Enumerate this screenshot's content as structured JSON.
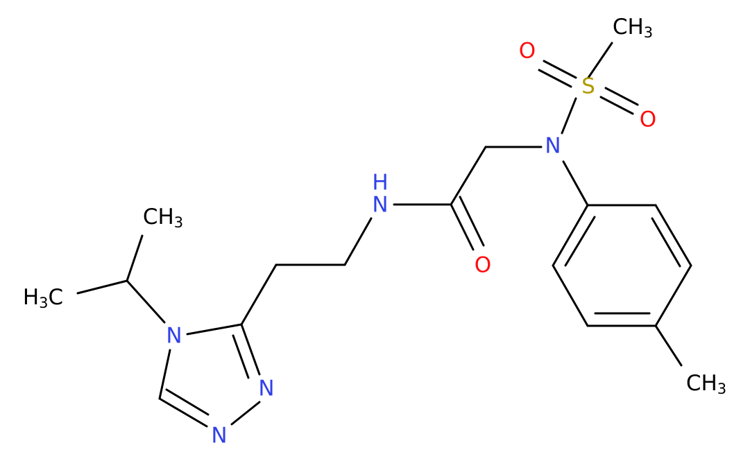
{
  "atoms": [
    {
      "parts": [
        "CH",
        "3"
      ]
    },
    {
      "parts": [
        "O"
      ]
    },
    {
      "parts": [
        "S"
      ]
    },
    {
      "parts": [
        "O"
      ]
    },
    {
      "parts": [
        "N"
      ]
    },
    {
      "parts": [
        "N"
      ]
    },
    {
      "parts": [
        "H"
      ]
    },
    {
      "parts": [
        "O"
      ]
    },
    {
      "parts": [
        "N"
      ]
    },
    {
      "parts": [
        "N"
      ]
    },
    {
      "parts": [
        "N"
      ]
    },
    {
      "parts": [
        "CH",
        "3"
      ]
    },
    {
      "parts": [
        "H",
        "3",
        "C"
      ]
    },
    {
      "parts": [
        "CH",
        "3"
      ]
    }
  ]
}
